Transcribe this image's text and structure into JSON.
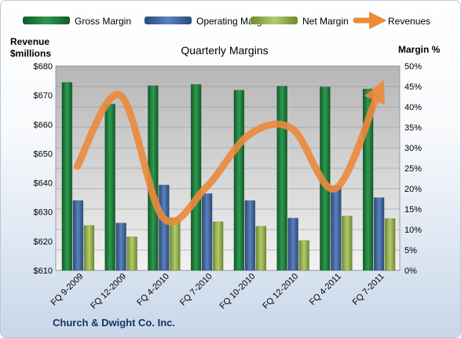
{
  "chart_data": {
    "type": "bar",
    "title": "Quarterly Margins",
    "company": "Church & Dwight Co. Inc.",
    "y_left_label": [
      "Revenue",
      "$millions"
    ],
    "y_right_label": "Margin %",
    "categories": [
      "FQ 9-2009",
      "FQ 12-2009",
      "FQ 4-2010",
      "FQ 7-2010",
      "FQ 10-2010",
      "FQ 12-2010",
      "FQ 4-2011",
      "FQ 7-2011"
    ],
    "y_left_ticks": [
      "$610",
      "$620",
      "$630",
      "$640",
      "$650",
      "$660",
      "$670",
      "$680"
    ],
    "y_right_ticks": [
      "0%",
      "5%",
      "10%",
      "15%",
      "20%",
      "25%",
      "30%",
      "35%",
      "40%",
      "45%",
      "50%"
    ],
    "y_left_lim": [
      610,
      680
    ],
    "y_right_lim": [
      0,
      50
    ],
    "grid": true,
    "legend_position": "top",
    "series": [
      {
        "name": "Gross Margin",
        "axis": "right",
        "type": "bar",
        "color": "#1e7a3c",
        "values": [
          46.0,
          40.7,
          45.2,
          45.5,
          44.1,
          45.1,
          44.9,
          44.4
        ]
      },
      {
        "name": "Operating Margin",
        "axis": "right",
        "type": "bar",
        "color": "#3b5f95",
        "values": [
          17.1,
          11.6,
          20.9,
          18.8,
          17.1,
          12.8,
          20.6,
          17.8
        ]
      },
      {
        "name": "Net Margin",
        "axis": "right",
        "type": "bar",
        "color": "#8faa4a",
        "values": [
          11.0,
          8.2,
          12.9,
          11.9,
          10.8,
          7.3,
          13.3,
          12.7
        ]
      },
      {
        "name": "Revenues",
        "axis": "left",
        "type": "line",
        "color": "#ec8a3c",
        "values": [
          645.7,
          670.0,
          628.0,
          638.5,
          656.5,
          658.5,
          638.0,
          671.0
        ]
      }
    ]
  }
}
